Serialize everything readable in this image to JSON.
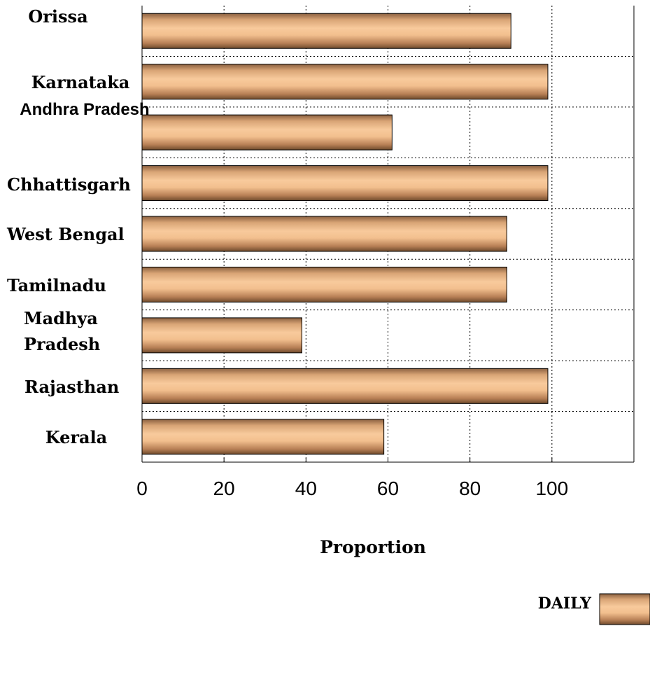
{
  "chart_data": {
    "type": "bar",
    "orientation": "horizontal",
    "categories": [
      "Orissa",
      "Karnataka",
      "Andhra Pradesh",
      "Chhattisgarh",
      "West Bengal",
      "Tamilnadu",
      "Madhya Pradesh",
      "Rajasthan",
      "Kerala"
    ],
    "series": [
      {
        "name": "DAILY",
        "values": [
          90,
          99,
          61,
          99,
          89,
          89,
          39,
          99,
          59
        ]
      }
    ],
    "xlabel": "Proportion",
    "ylabel": "",
    "xlim": [
      0,
      120
    ],
    "xticks": [
      0,
      20,
      40,
      60,
      80,
      100
    ],
    "grid": true,
    "legend_position": "bottom-right",
    "colors": {
      "bar_light": "#f6c79a",
      "bar_dark": "#7a5234",
      "bar_edge": "#000000",
      "grid": "#000000"
    }
  }
}
